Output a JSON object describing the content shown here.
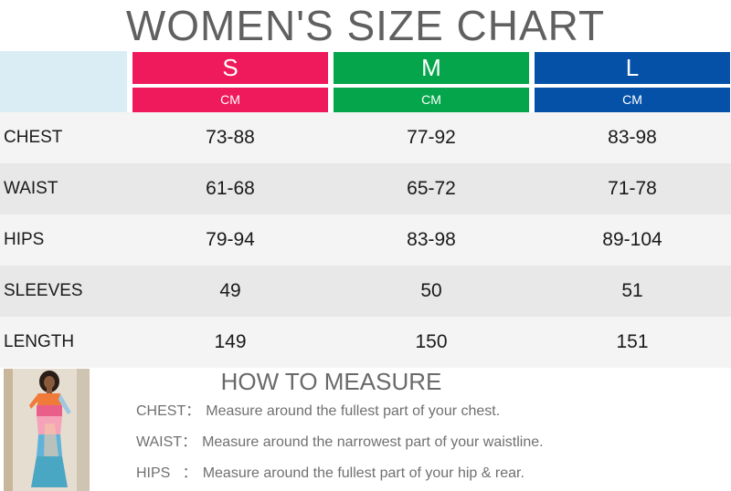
{
  "title": "WOMEN'S SIZE CHART",
  "sizes": [
    {
      "label": "S",
      "unit": "CM",
      "color": "#ee1a5c"
    },
    {
      "label": "M",
      "unit": "CM",
      "color": "#05a54c"
    },
    {
      "label": "L",
      "unit": "CM",
      "color": "#0651a8"
    }
  ],
  "rows": [
    {
      "label": "CHEST",
      "s": "73-88",
      "m": "77-92",
      "l": "83-98",
      "bg": "#f4f4f4"
    },
    {
      "label": "WAIST",
      "s": "61-68",
      "m": "65-72",
      "l": "71-78",
      "bg": "#e8e8e8"
    },
    {
      "label": "HIPS",
      "s": "79-94",
      "m": "83-98",
      "l": "89-104",
      "bg": "#f4f4f4"
    },
    {
      "label": "SLEEVES",
      "s": "49",
      "m": "50",
      "l": "51",
      "bg": "#e8e8e8"
    },
    {
      "label": "LENGTH",
      "s": "149",
      "m": "150",
      "l": "151",
      "bg": "#f4f4f4"
    }
  ],
  "measure": {
    "title": "HOW TO MEASURE",
    "items": [
      {
        "key": "CHEST：",
        "text": "Measure around the fullest part of your chest."
      },
      {
        "key": "WAIST：",
        "text": "Measure around the narrowest part of your waistline."
      },
      {
        "key": "HIPS   ：",
        "text": "Measure around the fullest part of your hip & rear."
      }
    ]
  }
}
